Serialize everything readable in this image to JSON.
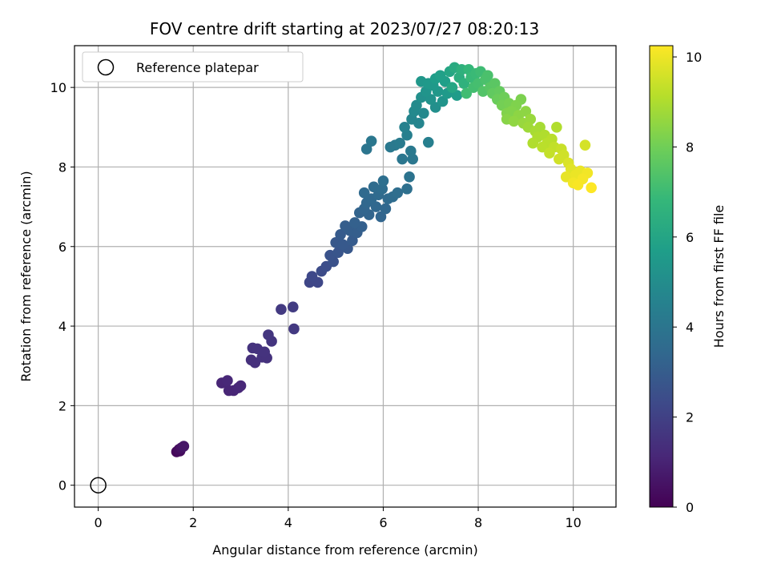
{
  "chart_data": {
    "type": "scatter",
    "title": "FOV centre drift starting at 2023/07/27 08:20:13",
    "xlabel": "Angular distance from reference (arcmin)",
    "ylabel": "Rotation from reference (arcmin)",
    "xlim": [
      -0.5,
      10.9
    ],
    "ylim": [
      -0.55,
      11.05
    ],
    "x_ticks": [
      0,
      2,
      4,
      6,
      8,
      10
    ],
    "y_ticks": [
      0,
      2,
      4,
      6,
      8,
      10
    ],
    "grid": true,
    "legend": {
      "position": "top-left",
      "entries": [
        {
          "label": "Reference platepar",
          "marker": "open-circle"
        }
      ]
    },
    "reference_point": {
      "x": 0,
      "y": 0
    },
    "colorbar": {
      "label": "Hours from first FF file",
      "colormap": "viridis",
      "range": [
        0,
        10.25
      ],
      "ticks": [
        0,
        2,
        4,
        6,
        8,
        10
      ]
    },
    "colormap_stops": [
      "#440154",
      "#482878",
      "#3e4989",
      "#31688e",
      "#26828e",
      "#1f9e89",
      "#35b779",
      "#6ece58",
      "#b5de2b",
      "#fde725"
    ],
    "anchors": [
      {
        "x": 1.68,
        "y": 0.85,
        "t": 0.2
      },
      {
        "x": 1.78,
        "y": 0.98,
        "t": 0.6
      },
      {
        "x": 2.7,
        "y": 2.55,
        "t": 1.1
      },
      {
        "x": 3.3,
        "y": 3.4,
        "t": 1.5
      },
      {
        "x": 4.1,
        "y": 4.45,
        "t": 1.8
      },
      {
        "x": 4.5,
        "y": 5.15,
        "t": 2.2
      },
      {
        "x": 5.0,
        "y": 6.0,
        "t": 2.8
      },
      {
        "x": 5.6,
        "y": 7.1,
        "t": 3.4
      },
      {
        "x": 6.3,
        "y": 8.4,
        "t": 4.1
      },
      {
        "x": 6.8,
        "y": 9.6,
        "t": 5.0
      },
      {
        "x": 7.3,
        "y": 10.25,
        "t": 5.8
      },
      {
        "x": 7.8,
        "y": 10.3,
        "t": 6.8
      },
      {
        "x": 8.3,
        "y": 10.0,
        "t": 7.6
      },
      {
        "x": 8.9,
        "y": 9.3,
        "t": 8.5
      },
      {
        "x": 9.5,
        "y": 8.6,
        "t": 9.2
      },
      {
        "x": 10.0,
        "y": 8.0,
        "t": 9.8
      },
      {
        "x": 10.3,
        "y": 7.6,
        "t": 10.25
      }
    ],
    "points": [
      [
        1.65,
        0.84
      ],
      [
        1.7,
        0.9
      ],
      [
        1.75,
        0.94
      ],
      [
        1.8,
        0.98
      ],
      [
        1.72,
        0.86
      ],
      [
        2.6,
        2.57
      ],
      [
        2.72,
        2.63
      ],
      [
        2.75,
        2.38
      ],
      [
        2.85,
        2.38
      ],
      [
        2.95,
        2.45
      ],
      [
        3.0,
        2.5
      ],
      [
        3.22,
        3.15
      ],
      [
        3.25,
        3.45
      ],
      [
        3.3,
        3.08
      ],
      [
        3.35,
        3.43
      ],
      [
        3.45,
        3.22
      ],
      [
        3.5,
        3.35
      ],
      [
        3.55,
        3.2
      ],
      [
        3.58,
        3.78
      ],
      [
        3.65,
        3.62
      ],
      [
        3.85,
        4.42
      ],
      [
        4.1,
        4.48
      ],
      [
        4.12,
        3.93
      ],
      [
        4.45,
        5.1
      ],
      [
        4.5,
        5.25
      ],
      [
        4.62,
        5.1
      ],
      [
        4.7,
        5.38
      ],
      [
        4.8,
        5.5
      ],
      [
        4.88,
        5.78
      ],
      [
        4.95,
        5.62
      ],
      [
        5.0,
        6.1
      ],
      [
        5.05,
        5.85
      ],
      [
        5.1,
        6.3
      ],
      [
        5.15,
        6.05
      ],
      [
        5.2,
        6.52
      ],
      [
        5.25,
        5.95
      ],
      [
        5.3,
        6.4
      ],
      [
        5.35,
        6.15
      ],
      [
        5.4,
        6.6
      ],
      [
        5.45,
        6.35
      ],
      [
        5.5,
        6.85
      ],
      [
        5.55,
        6.5
      ],
      [
        5.6,
        7.35
      ],
      [
        5.6,
        6.95
      ],
      [
        5.65,
        7.1
      ],
      [
        5.7,
        6.8
      ],
      [
        5.75,
        7.2
      ],
      [
        5.8,
        7.5
      ],
      [
        5.85,
        7.0
      ],
      [
        5.9,
        7.3
      ],
      [
        5.95,
        6.75
      ],
      [
        6.0,
        7.65
      ],
      [
        5.98,
        7.45
      ],
      [
        6.05,
        6.95
      ],
      [
        6.1,
        7.2
      ],
      [
        6.15,
        8.5
      ],
      [
        6.2,
        7.25
      ],
      [
        6.25,
        8.55
      ],
      [
        6.3,
        7.35
      ],
      [
        5.75,
        8.65
      ],
      [
        5.65,
        8.45
      ],
      [
        6.35,
        8.6
      ],
      [
        6.4,
        8.2
      ],
      [
        6.45,
        9.0
      ],
      [
        6.5,
        8.8
      ],
      [
        6.55,
        7.75
      ],
      [
        6.5,
        7.45
      ],
      [
        6.58,
        8.4
      ],
      [
        6.6,
        9.2
      ],
      [
        6.62,
        8.2
      ],
      [
        6.65,
        9.4
      ],
      [
        6.7,
        9.55
      ],
      [
        6.75,
        9.1
      ],
      [
        6.8,
        9.75
      ],
      [
        6.8,
        10.15
      ],
      [
        6.85,
        9.35
      ],
      [
        6.9,
        9.9
      ],
      [
        6.95,
        10.1
      ],
      [
        6.95,
        8.62
      ],
      [
        7.0,
        9.7
      ],
      [
        7.05,
        10.05
      ],
      [
        7.1,
        9.5
      ],
      [
        7.1,
        10.22
      ],
      [
        7.15,
        9.9
      ],
      [
        7.2,
        10.3
      ],
      [
        7.25,
        9.65
      ],
      [
        7.3,
        10.15
      ],
      [
        7.35,
        9.85
      ],
      [
        7.4,
        10.4
      ],
      [
        7.45,
        10.0
      ],
      [
        7.5,
        10.5
      ],
      [
        7.55,
        9.8
      ],
      [
        7.6,
        10.25
      ],
      [
        7.65,
        10.45
      ],
      [
        7.7,
        10.1
      ],
      [
        7.75,
        9.85
      ],
      [
        7.8,
        10.45
      ],
      [
        7.85,
        10.25
      ],
      [
        7.9,
        10.0
      ],
      [
        7.95,
        10.35
      ],
      [
        8.0,
        10.1
      ],
      [
        8.05,
        10.4
      ],
      [
        8.1,
        9.9
      ],
      [
        8.15,
        10.2
      ],
      [
        8.2,
        10.3
      ],
      [
        8.25,
        10.0
      ],
      [
        8.3,
        9.85
      ],
      [
        8.35,
        10.1
      ],
      [
        8.4,
        9.7
      ],
      [
        8.45,
        9.9
      ],
      [
        8.5,
        9.55
      ],
      [
        8.55,
        9.75
      ],
      [
        8.6,
        9.35
      ],
      [
        8.6,
        9.2
      ],
      [
        8.65,
        9.6
      ],
      [
        8.7,
        9.4
      ],
      [
        8.75,
        9.15
      ],
      [
        8.8,
        9.55
      ],
      [
        8.85,
        9.3
      ],
      [
        8.9,
        9.7
      ],
      [
        8.95,
        9.1
      ],
      [
        9.0,
        9.4
      ],
      [
        9.05,
        9.0
      ],
      [
        9.1,
        9.2
      ],
      [
        9.15,
        8.6
      ],
      [
        9.2,
        8.9
      ],
      [
        9.25,
        8.75
      ],
      [
        9.3,
        9.0
      ],
      [
        9.35,
        8.5
      ],
      [
        9.4,
        8.8
      ],
      [
        9.45,
        8.6
      ],
      [
        9.5,
        8.35
      ],
      [
        9.55,
        8.7
      ],
      [
        9.6,
        8.5
      ],
      [
        9.65,
        9.0
      ],
      [
        9.7,
        8.2
      ],
      [
        9.75,
        8.45
      ],
      [
        9.8,
        8.3
      ],
      [
        9.85,
        7.75
      ],
      [
        9.9,
        8.1
      ],
      [
        9.95,
        7.95
      ],
      [
        10.0,
        7.6
      ],
      [
        10.05,
        7.8
      ],
      [
        10.1,
        7.55
      ],
      [
        10.15,
        7.9
      ],
      [
        10.2,
        7.7
      ],
      [
        10.25,
        8.55
      ],
      [
        10.3,
        7.85
      ],
      [
        10.38,
        7.48
      ]
    ]
  }
}
